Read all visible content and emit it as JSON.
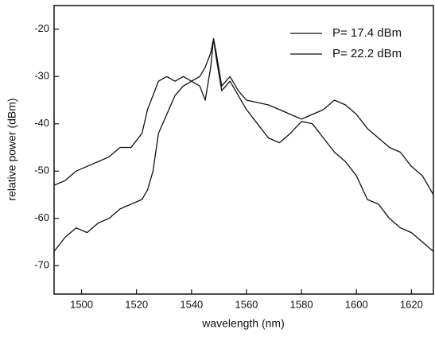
{
  "chart_data": {
    "type": "line",
    "xlabel": "wavelength (nm)",
    "ylabel": "relative power (dBm)",
    "x": [
      1490,
      1494,
      1498,
      1502,
      1506,
      1510,
      1514,
      1518,
      1522,
      1524,
      1526,
      1528,
      1531,
      1534,
      1537,
      1540,
      1543,
      1545,
      1547,
      1548,
      1549,
      1551,
      1554,
      1557,
      1560,
      1564,
      1568,
      1572,
      1576,
      1580,
      1584,
      1588,
      1592,
      1596,
      1600,
      1604,
      1608,
      1612,
      1616,
      1620,
      1624,
      1628
    ],
    "series": [
      {
        "name": "P= 17.4 dBm",
        "color": "#111111",
        "values": [
          -67,
          -64,
          -62,
          -63,
          -61,
          -60,
          -58,
          -57,
          -56,
          -54,
          -50,
          -42,
          -38,
          -34,
          -32,
          -31,
          -32,
          -35,
          -28,
          -22,
          -26,
          -33,
          -31,
          -34,
          -37,
          -40,
          -43,
          -44,
          -42,
          -39.5,
          -40,
          -43,
          -46,
          -48,
          -51,
          -56,
          -57,
          -60,
          -62,
          -63,
          -65,
          -67
        ]
      },
      {
        "name": "P= 22.2 dBm",
        "color": "#111111",
        "values": [
          -53,
          -52,
          -50,
          -49,
          -48,
          -47,
          -45,
          -45,
          -42,
          -37,
          -34,
          -31,
          -30,
          -31,
          -30,
          -31,
          -30,
          -28,
          -25,
          -22,
          -25,
          -32,
          -30,
          -33,
          -35,
          -35.5,
          -36,
          -37,
          -38,
          -39,
          -38,
          -37,
          -35,
          -36,
          -38,
          -41,
          -43,
          -45,
          -46,
          -49,
          -51,
          -55
        ]
      }
    ],
    "xlim": [
      1490,
      1628
    ],
    "xticks": [
      1500,
      1520,
      1540,
      1560,
      1580,
      1600,
      1620
    ],
    "ylim": [
      -76,
      -15
    ],
    "yticks": [
      -20,
      -30,
      -40,
      -50,
      -60,
      -70
    ],
    "legend": "upper right"
  }
}
